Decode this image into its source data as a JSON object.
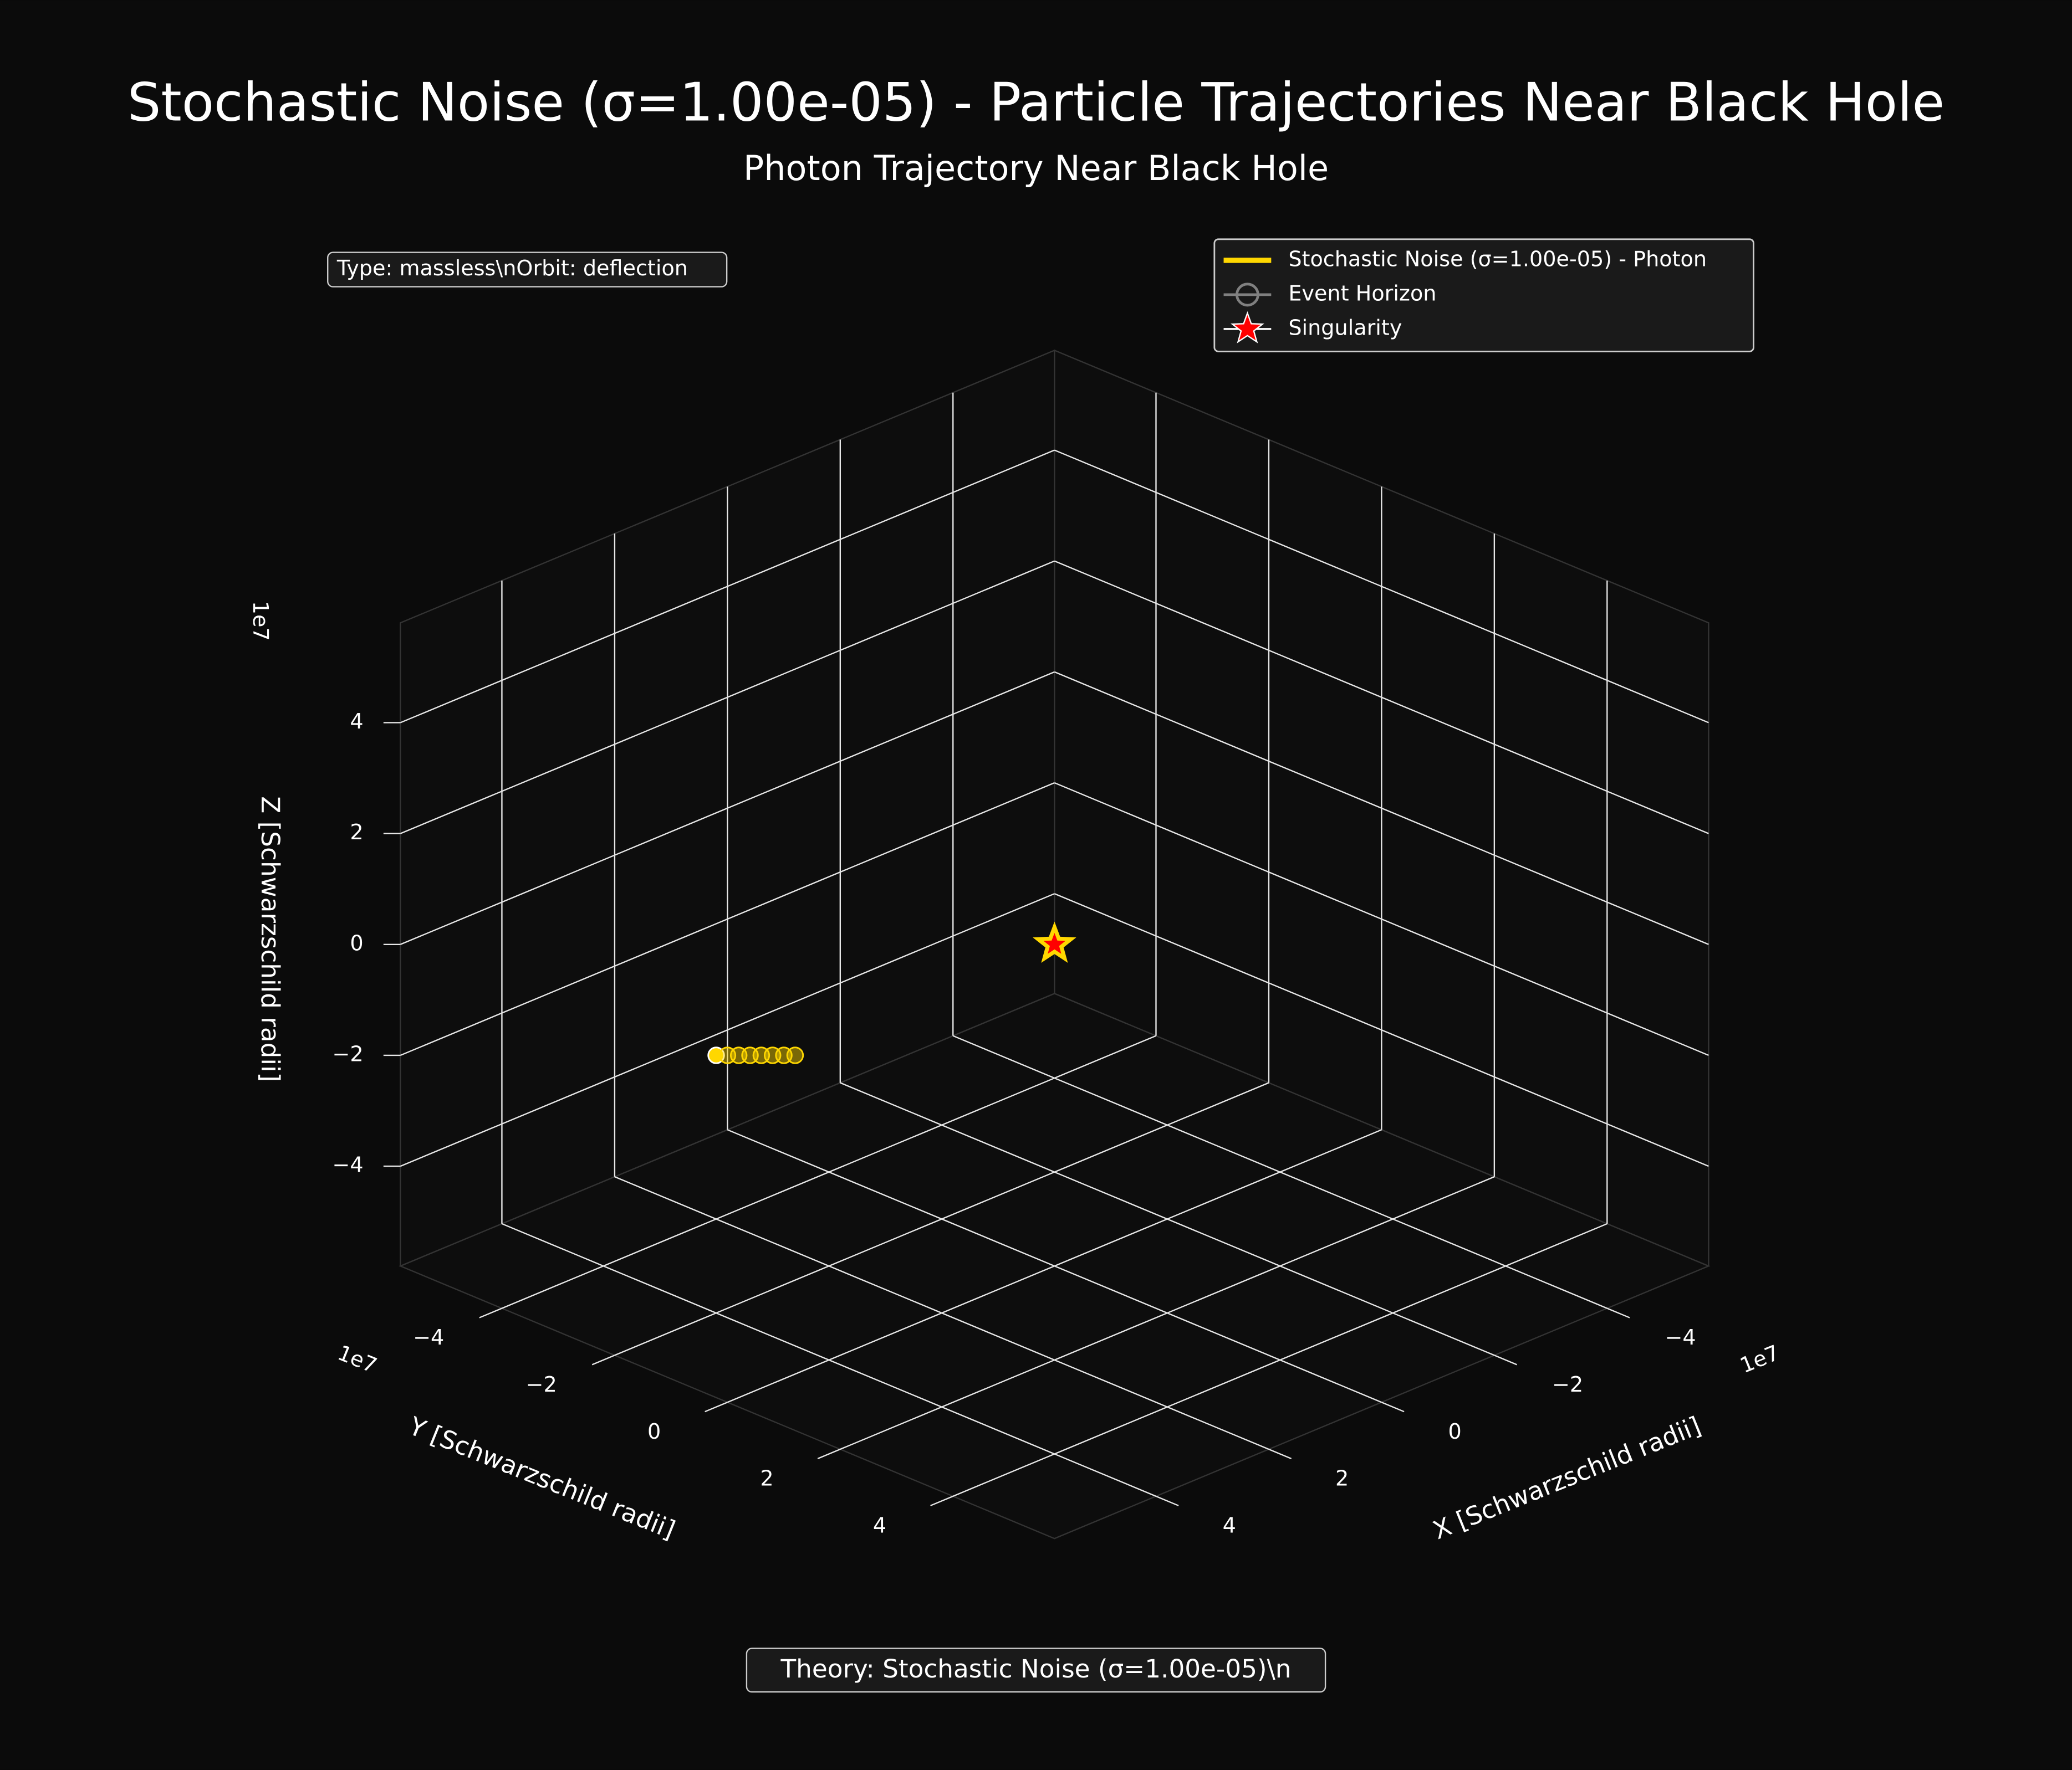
{
  "chart_data": {
    "type": "scatter3d",
    "title": "Stochastic Noise (σ=1.00e-05) - Particle Trajectories Near Black Hole",
    "subtitle": "Photon Trajectory Near Black Hole",
    "xlabel": "X [Schwarzschild radii]",
    "ylabel": "Y [Schwarzschild radii]",
    "zlabel": "Z [Schwarzschild radii]",
    "axis_offset": "1e7",
    "xlim": [
      -5.8,
      5.8
    ],
    "ylim": [
      -5.8,
      5.8
    ],
    "zlim": [
      -5.8,
      5.8
    ],
    "xticks": [
      {
        "value": -4,
        "label": "−4"
      },
      {
        "value": -2,
        "label": "−2"
      },
      0,
      2,
      4
    ],
    "yticks": [
      {
        "value": -4,
        "label": "−4"
      },
      {
        "value": -2,
        "label": "−2"
      },
      0,
      2,
      4
    ],
    "zticks": [
      {
        "value": -4,
        "label": "−4"
      },
      {
        "value": -2,
        "label": "−2"
      },
      0,
      2,
      4
    ],
    "grid": true,
    "series": [
      {
        "name": "Stochastic Noise (σ=1.00e-05) - Photon",
        "color": "#FFD700",
        "x": [
          3.0,
          2.9,
          2.8,
          2.7,
          2.6,
          2.5,
          2.4,
          2.3
        ],
        "y": [
          -3.0,
          -2.9,
          -2.8,
          -2.7,
          -2.6,
          -2.5,
          -2.4,
          -2.3
        ],
        "z": [
          -2.0,
          -2.0,
          -2.0,
          -2.0,
          -2.0,
          -2.0,
          -2.0,
          -2.0
        ]
      }
    ],
    "event_horizon": {
      "name": "Event Horizon",
      "color": "#808080"
    },
    "singularity": {
      "name": "Singularity",
      "color": "#ff0000",
      "x": 0,
      "y": 0,
      "z": 0
    },
    "legend_loc": "upper right",
    "annotations": [
      "Type: massless\\nOrbit: deflection",
      "Theory: Stochastic Noise (σ=1.00e-05)\\n"
    ]
  }
}
